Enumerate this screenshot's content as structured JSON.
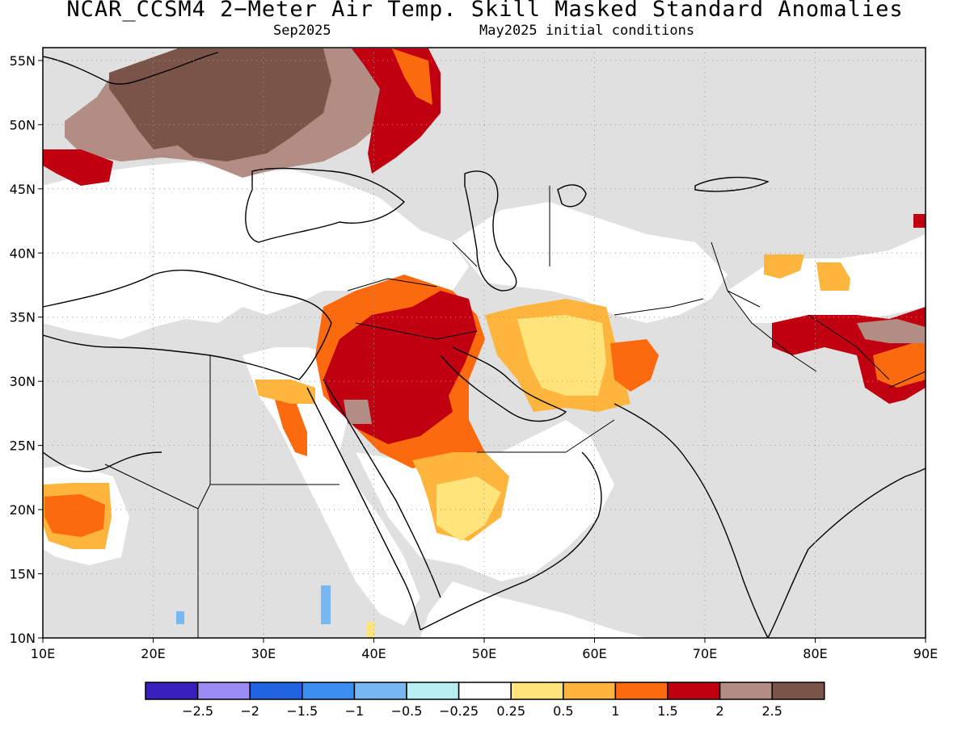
{
  "title": "NCAR_CCSM4 2−Meter Air Temp. Skill Masked Standard Anomalies",
  "subtitle_left": "Sep2025",
  "subtitle_right": "May2025 initial conditions",
  "map": {
    "lon_range": [
      10,
      90
    ],
    "lat_range": [
      10,
      56
    ],
    "lat_labels": [
      "55N",
      "50N",
      "45N",
      "40N",
      "35N",
      "30N",
      "25N",
      "20N",
      "15N",
      "10N"
    ],
    "lat_values": [
      55,
      50,
      45,
      40,
      35,
      30,
      25,
      20,
      15,
      10
    ],
    "lon_labels": [
      "10E",
      "20E",
      "30E",
      "40E",
      "50E",
      "60E",
      "70E",
      "80E",
      "90E"
    ],
    "lon_values": [
      10,
      20,
      30,
      40,
      50,
      60,
      70,
      80,
      90
    ],
    "masked_color": "#e0e0e0",
    "grid": "dotted"
  },
  "colorbar": {
    "colors": [
      "#3a1fbf",
      "#9b8cf5",
      "#1f63e0",
      "#3c8fee",
      "#78b8f2",
      "#b4eef0",
      "#ffffff",
      "#fee47a",
      "#fdb53d",
      "#fb6a0e",
      "#c00010",
      "#b18d83",
      "#7a5449"
    ],
    "labels": [
      "−2.5",
      "−2",
      "−1.5",
      "−1",
      "−0.5",
      "−0.25",
      "0.25",
      "0.5",
      "1",
      "1.5",
      "2",
      "2.5"
    ]
  }
}
